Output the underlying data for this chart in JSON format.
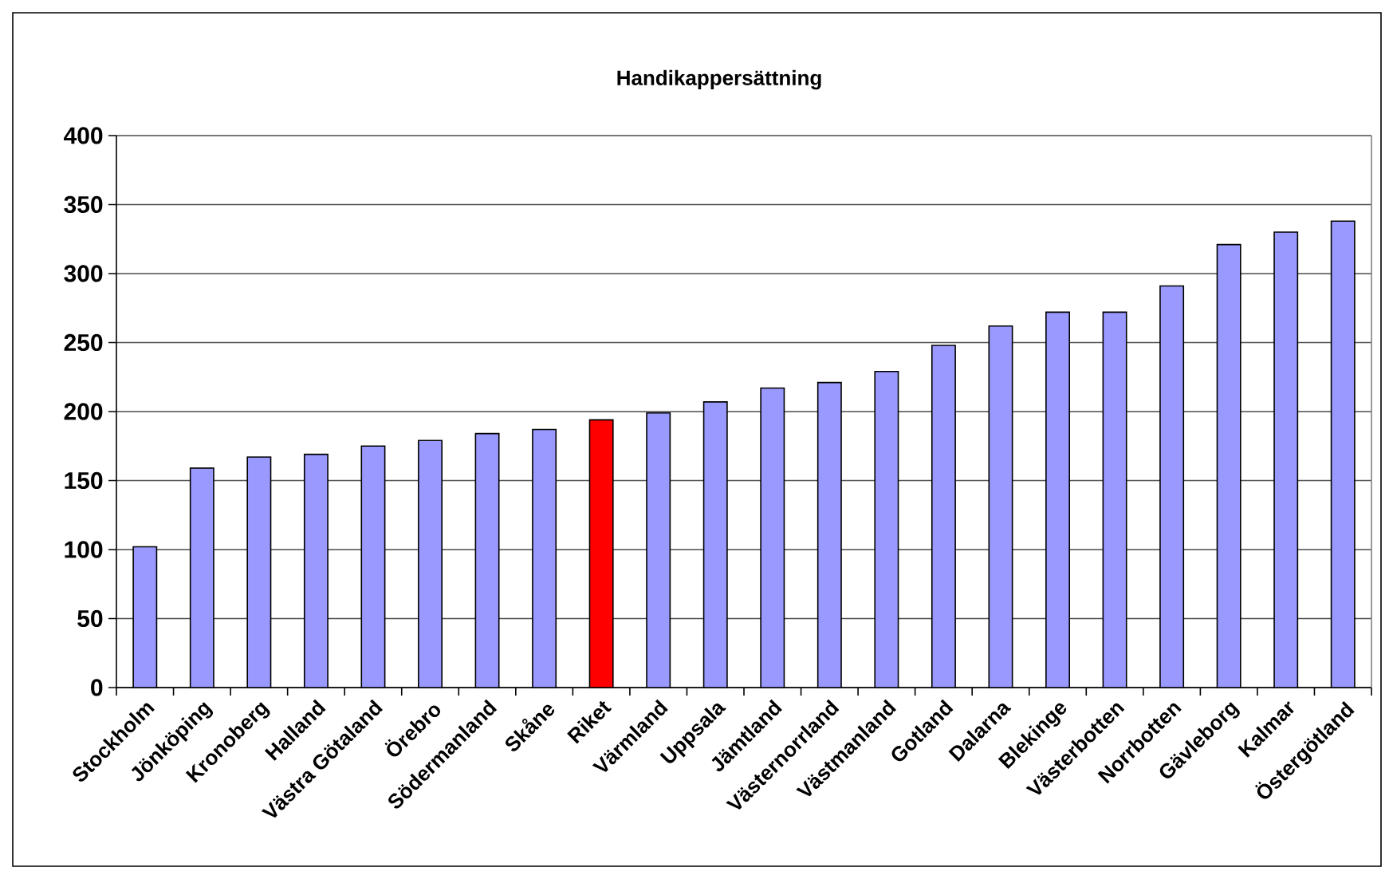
{
  "chart_data": {
    "type": "bar",
    "title": "Handikappersättning",
    "categories": [
      "Stockholm",
      "Jönköping",
      "Kronoberg",
      "Halland",
      "Västra Götaland",
      "Örebro",
      "Södermanland",
      "Skåne",
      "Riket",
      "Värmland",
      "Uppsala",
      "Jämtland",
      "Västernorrland",
      "Västmanland",
      "Gotland",
      "Dalarna",
      "Blekinge",
      "Västerbotten",
      "Norrbotten",
      "Gävleborg",
      "Kalmar",
      "Östergötland"
    ],
    "values": [
      102,
      159,
      167,
      169,
      175,
      179,
      184,
      187,
      194,
      199,
      207,
      217,
      221,
      229,
      248,
      262,
      272,
      272,
      291,
      321,
      330,
      338
    ],
    "colors": [
      "#9999ff",
      "#9999ff",
      "#9999ff",
      "#9999ff",
      "#9999ff",
      "#9999ff",
      "#9999ff",
      "#9999ff",
      "#ff0000",
      "#9999ff",
      "#9999ff",
      "#9999ff",
      "#9999ff",
      "#9999ff",
      "#9999ff",
      "#9999ff",
      "#9999ff",
      "#9999ff",
      "#9999ff",
      "#9999ff",
      "#9999ff",
      "#9999ff"
    ],
    "ylim": [
      0,
      400
    ],
    "yticks": [
      0,
      50,
      100,
      150,
      200,
      250,
      300,
      350,
      400
    ],
    "grid": "y"
  }
}
